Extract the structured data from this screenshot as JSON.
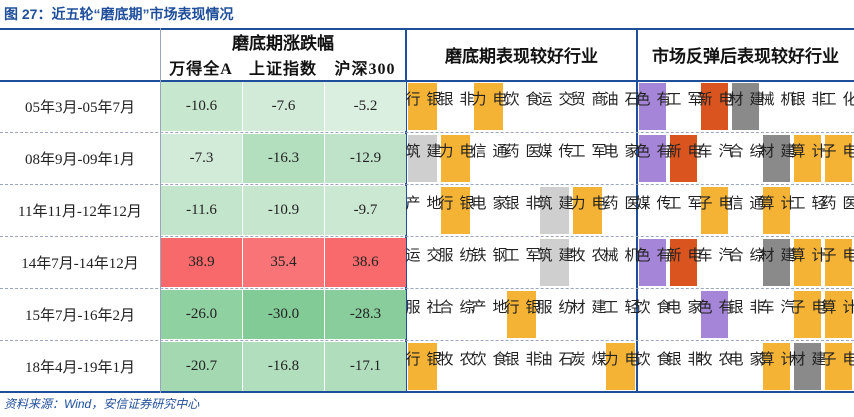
{
  "title": "图 27：近五轮“磨底期”市场表现情况",
  "table": {
    "header": {
      "returns": "磨底期涨跌幅",
      "indices": [
        "万得全A",
        "上证指数",
        "沪深300"
      ],
      "group1": "磨底期表现较好行业",
      "group2": "市场反弹后表现较好行业"
    },
    "rows": [
      {
        "period": "05年3月-05年7月",
        "values": [
          "-10.6",
          "-7.6",
          "-5.2"
        ],
        "group1": [
          {
            "text": "银行",
            "color": "#f5b335"
          },
          {
            "text": "非银",
            "color": "#ffffff"
          },
          {
            "text": "电力",
            "color": "#f5b335"
          },
          {
            "text": "食饮",
            "color": "#ffffff"
          },
          {
            "text": "交运",
            "color": "#ffffff"
          },
          {
            "text": "商贸",
            "color": "#ffffff"
          },
          {
            "text": "石油",
            "color": "#ffffff"
          }
        ],
        "group2": [
          {
            "text": "有色",
            "color": "#a585d8"
          },
          {
            "text": "军工",
            "color": "#ffffff"
          },
          {
            "text": "电新",
            "color": "#d9541f"
          },
          {
            "text": "建材",
            "color": "#8a8a8a"
          },
          {
            "text": "机械",
            "color": "#ffffff"
          },
          {
            "text": "非银",
            "color": "#ffffff"
          },
          {
            "text": "化工",
            "color": "#ffffff"
          }
        ]
      },
      {
        "period": "08年9月-09年1月",
        "values": [
          "-7.3",
          "-16.3",
          "-12.9"
        ],
        "group1": [
          {
            "text": "建筑",
            "color": "#cfcfcf"
          },
          {
            "text": "电力",
            "color": "#f5b335"
          },
          {
            "text": "通信",
            "color": "#ffffff"
          },
          {
            "text": "医药",
            "color": "#ffffff"
          },
          {
            "text": "传媒",
            "color": "#ffffff"
          },
          {
            "text": "军工",
            "color": "#ffffff"
          },
          {
            "text": "家电",
            "color": "#ffffff"
          }
        ],
        "group2": [
          {
            "text": "有色",
            "color": "#a585d8"
          },
          {
            "text": "电新",
            "color": "#d9541f"
          },
          {
            "text": "汽车",
            "color": "#ffffff"
          },
          {
            "text": "综合",
            "color": "#ffffff"
          },
          {
            "text": "建材",
            "color": "#8a8a8a"
          },
          {
            "text": "计算",
            "color": "#f5b335"
          },
          {
            "text": "电子",
            "color": "#f5b335"
          }
        ]
      },
      {
        "period": "11年11月-12年12月",
        "values": [
          "-11.6",
          "-10.9",
          "-9.7"
        ],
        "group1": [
          {
            "text": "地产",
            "color": "#ffffff"
          },
          {
            "text": "银行",
            "color": "#f5b335"
          },
          {
            "text": "家电",
            "color": "#ffffff"
          },
          {
            "text": "非银",
            "color": "#ffffff"
          },
          {
            "text": "建筑",
            "color": "#cfcfcf"
          },
          {
            "text": "电力",
            "color": "#f5b335"
          },
          {
            "text": "医药",
            "color": "#ffffff"
          }
        ],
        "group2": [
          {
            "text": "传媒",
            "color": "#ffffff"
          },
          {
            "text": "军工",
            "color": "#ffffff"
          },
          {
            "text": "电子",
            "color": "#f5b335"
          },
          {
            "text": "通信",
            "color": "#ffffff"
          },
          {
            "text": "计算",
            "color": "#f5b335"
          },
          {
            "text": "轻工",
            "color": "#ffffff"
          },
          {
            "text": "医药",
            "color": "#ffffff"
          }
        ]
      },
      {
        "period": "14年7月-14年12月",
        "values": [
          "38.9",
          "35.4",
          "38.6"
        ],
        "group1": [
          {
            "text": "交运",
            "color": "#ffffff"
          },
          {
            "text": "纺服",
            "color": "#ffffff"
          },
          {
            "text": "钢铁",
            "color": "#ffffff"
          },
          {
            "text": "军工",
            "color": "#ffffff"
          },
          {
            "text": "建筑",
            "color": "#cfcfcf"
          },
          {
            "text": "农牧",
            "color": "#ffffff"
          },
          {
            "text": "机械",
            "color": "#ffffff"
          }
        ],
        "group2": [
          {
            "text": "有色",
            "color": "#a585d8"
          },
          {
            "text": "电新",
            "color": "#d9541f"
          },
          {
            "text": "汽车",
            "color": "#ffffff"
          },
          {
            "text": "综合",
            "color": "#ffffff"
          },
          {
            "text": "建材",
            "color": "#8a8a8a"
          },
          {
            "text": "计算",
            "color": "#f5b335"
          },
          {
            "text": "电子",
            "color": "#f5b335"
          }
        ]
      },
      {
        "period": "15年7月-16年2月",
        "values": [
          "-26.0",
          "-30.0",
          "-28.3"
        ],
        "group1": [
          {
            "text": "社服",
            "color": "#ffffff"
          },
          {
            "text": "综合",
            "color": "#ffffff"
          },
          {
            "text": "地产",
            "color": "#ffffff"
          },
          {
            "text": "银行",
            "color": "#f5b335"
          },
          {
            "text": "纺服",
            "color": "#ffffff"
          },
          {
            "text": "建材",
            "color": "#ffffff"
          },
          {
            "text": "轻工",
            "color": "#ffffff"
          }
        ],
        "group2": [
          {
            "text": "食饮",
            "color": "#ffffff"
          },
          {
            "text": "家电",
            "color": "#ffffff"
          },
          {
            "text": "有色",
            "color": "#a585d8"
          },
          {
            "text": "非银",
            "color": "#ffffff"
          },
          {
            "text": "汽车",
            "color": "#ffffff"
          },
          {
            "text": "电子",
            "color": "#f5b335"
          },
          {
            "text": "计算",
            "color": "#f5b335"
          }
        ]
      },
      {
        "period": "18年4月-19年1月",
        "values": [
          "-20.7",
          "-16.8",
          "-17.1"
        ],
        "group1": [
          {
            "text": "银行",
            "color": "#f5b335"
          },
          {
            "text": "农牧",
            "color": "#ffffff"
          },
          {
            "text": "食饮",
            "color": "#ffffff"
          },
          {
            "text": "非银",
            "color": "#ffffff"
          },
          {
            "text": "石油",
            "color": "#ffffff"
          },
          {
            "text": "煤炭",
            "color": "#ffffff"
          },
          {
            "text": "电力",
            "color": "#f5b335"
          }
        ],
        "group2": [
          {
            "text": "食饮",
            "color": "#ffffff"
          },
          {
            "text": "非银",
            "color": "#ffffff"
          },
          {
            "text": "农牧",
            "color": "#ffffff"
          },
          {
            "text": "家电",
            "color": "#ffffff"
          },
          {
            "text": "计算",
            "color": "#f5b335"
          },
          {
            "text": "建材",
            "color": "#8a8a8a"
          },
          {
            "text": "电子",
            "color": "#f5b335"
          }
        ]
      }
    ]
  },
  "source": "资料来源：Wind，安信证券研究中心"
}
